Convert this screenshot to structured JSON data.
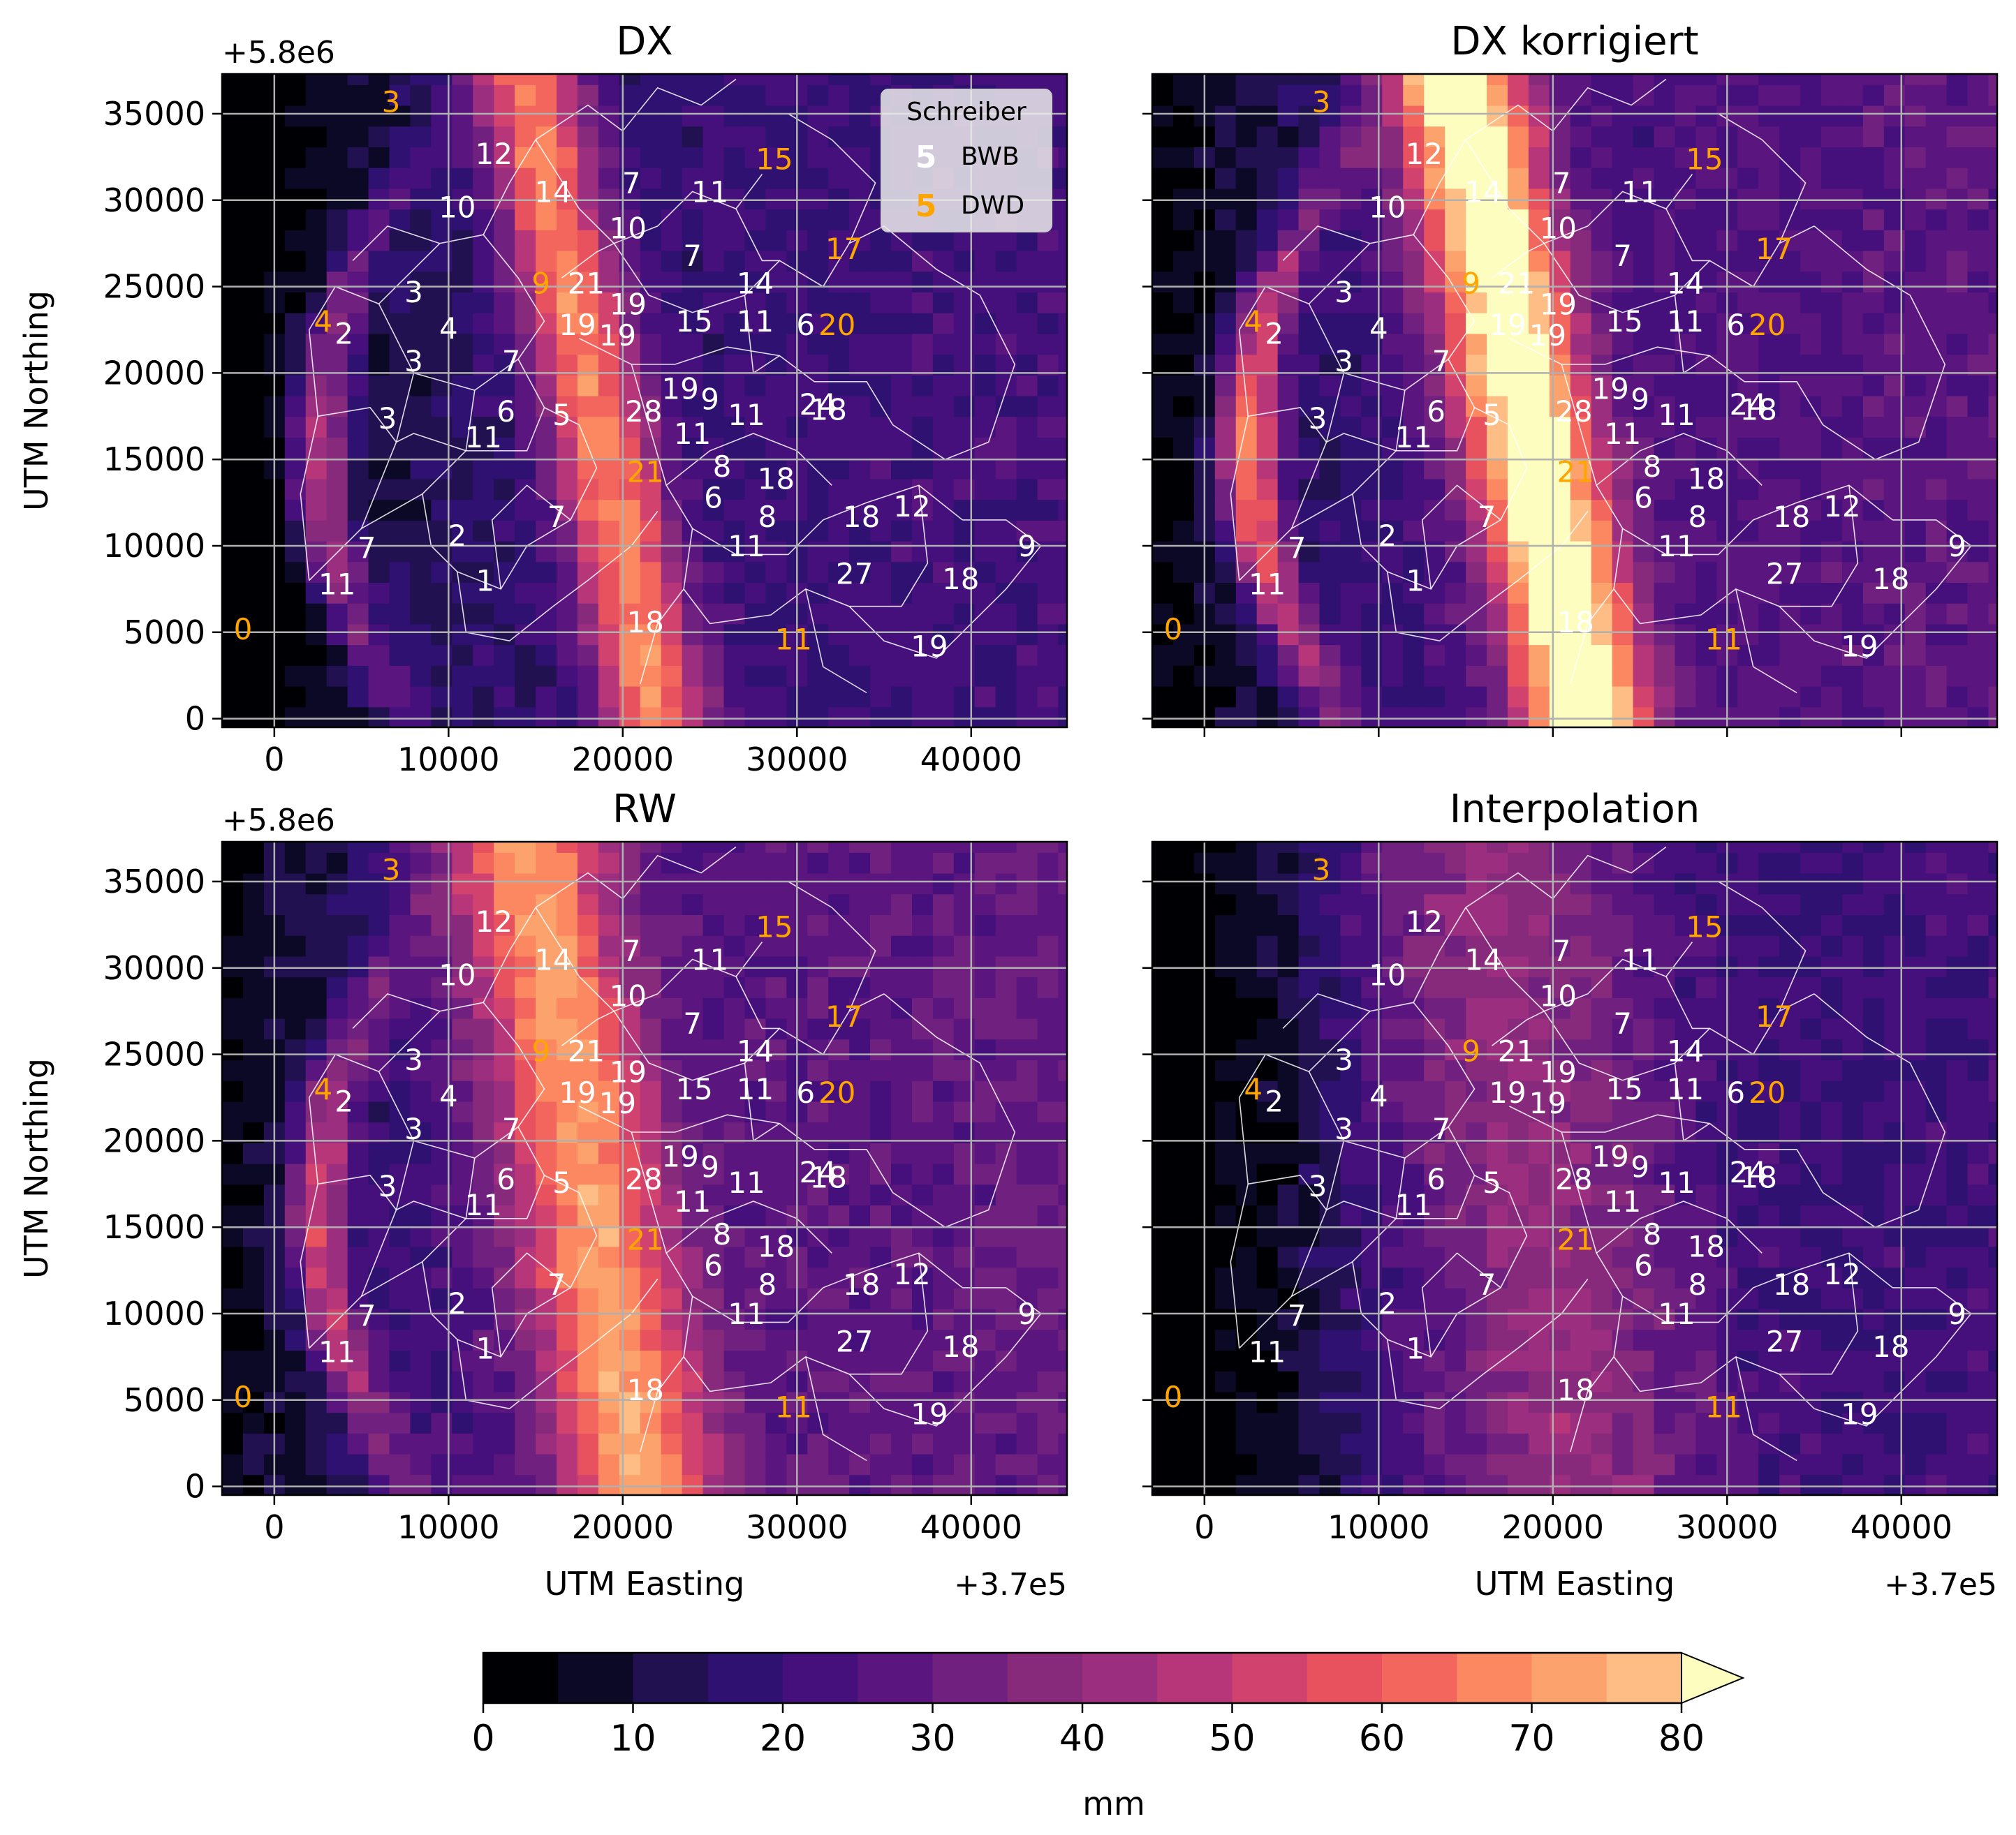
{
  "chart_data": [
    {
      "type": "heatmap",
      "title": "DX",
      "xlabel": "UTM Easting",
      "ylabel": "UTM Northing",
      "x_offset_label": "+3.7e5",
      "y_offset_label": "+5.8e6",
      "xlim": [
        -3000,
        45500
      ],
      "ylim": [
        -500,
        37300
      ],
      "xticks": [
        0,
        10000,
        20000,
        30000,
        40000
      ],
      "yticks": [
        0,
        5000,
        10000,
        15000,
        20000,
        25000,
        30000,
        35000
      ],
      "grid": true,
      "field": {
        "ridge_x0": 14500,
        "ridge_y0": 37000,
        "ridge_x1": 22000,
        "ridge_y1": 0,
        "ridge_peak": 50,
        "ridge_width": 2200,
        "west_arc_peak": 40,
        "background": 13
      }
    },
    {
      "type": "heatmap",
      "title": "DX korrigiert",
      "xlabel": "",
      "ylabel": "",
      "xlim": [
        -3000,
        45500
      ],
      "ylim": [
        -500,
        37300
      ],
      "grid": true,
      "field": {
        "ridge_x0": 14500,
        "ridge_y0": 37000,
        "ridge_x1": 22000,
        "ridge_y1": 0,
        "ridge_peak": 72,
        "ridge_width": 2700,
        "west_arc_peak": 55,
        "background": 18
      }
    },
    {
      "type": "heatmap",
      "title": "RW",
      "xlabel": "UTM Easting",
      "ylabel": "UTM Northing",
      "x_offset_label": "+3.7e5",
      "y_offset_label": "+5.8e6",
      "xlim": [
        -3000,
        45500
      ],
      "ylim": [
        -500,
        37300
      ],
      "xticks": [
        0,
        10000,
        20000,
        30000,
        40000
      ],
      "yticks": [
        0,
        5000,
        10000,
        15000,
        20000,
        25000,
        30000,
        35000
      ],
      "grid": true,
      "field": {
        "ridge_x0": 14500,
        "ridge_y0": 37000,
        "ridge_x1": 21000,
        "ridge_y1": 0,
        "ridge_peak": 48,
        "ridge_width": 3200,
        "west_arc_peak": 40,
        "background": 20
      }
    },
    {
      "type": "heatmap",
      "title": "Interpolation",
      "xlabel": "UTM Easting",
      "ylabel": "",
      "x_offset_label": "+3.7e5",
      "xlim": [
        -3000,
        45500
      ],
      "ylim": [
        -500,
        37300
      ],
      "xticks": [
        0,
        10000,
        20000,
        30000,
        40000
      ],
      "grid": true,
      "field": {
        "ridge_x0": 16000,
        "ridge_y0": 37000,
        "ridge_x1": 21000,
        "ridge_y1": 0,
        "ridge_peak": 24,
        "ridge_width": 6000,
        "west_arc_peak": 0,
        "background": 12
      }
    }
  ],
  "gauges": [
    {
      "v": "3",
      "x": 6700,
      "y": 35700,
      "net": "DWD"
    },
    {
      "v": "12",
      "x": 12600,
      "y": 32700,
      "net": "BWB"
    },
    {
      "v": "15",
      "x": 28700,
      "y": 32400,
      "net": "DWD"
    },
    {
      "v": "14",
      "x": 16000,
      "y": 30500,
      "net": "BWB"
    },
    {
      "v": "7",
      "x": 20500,
      "y": 31000,
      "net": "BWB"
    },
    {
      "v": "11",
      "x": 25000,
      "y": 30500,
      "net": "BWB"
    },
    {
      "v": "10",
      "x": 10500,
      "y": 29600,
      "net": "BWB"
    },
    {
      "v": "10",
      "x": 20300,
      "y": 28400,
      "net": "BWB"
    },
    {
      "v": "7",
      "x": 24000,
      "y": 26800,
      "net": "BWB"
    },
    {
      "v": "17",
      "x": 32700,
      "y": 27200,
      "net": "DWD"
    },
    {
      "v": "9",
      "x": 15300,
      "y": 25200,
      "net": "DWD"
    },
    {
      "v": "21",
      "x": 17900,
      "y": 25200,
      "net": "BWB"
    },
    {
      "v": "14",
      "x": 27600,
      "y": 25200,
      "net": "BWB"
    },
    {
      "v": "3",
      "x": 8000,
      "y": 24700,
      "net": "BWB"
    },
    {
      "v": "19",
      "x": 20300,
      "y": 24000,
      "net": "BWB"
    },
    {
      "v": "4",
      "x": 2800,
      "y": 23000,
      "net": "DWD"
    },
    {
      "v": "2",
      "x": 4000,
      "y": 22300,
      "net": "BWB"
    },
    {
      "v": "4",
      "x": 10000,
      "y": 22600,
      "net": "BWB"
    },
    {
      "v": "19",
      "x": 17400,
      "y": 22800,
      "net": "BWB"
    },
    {
      "v": "19",
      "x": 19700,
      "y": 22200,
      "net": "BWB"
    },
    {
      "v": "15",
      "x": 24100,
      "y": 23000,
      "net": "BWB"
    },
    {
      "v": "11",
      "x": 27600,
      "y": 23000,
      "net": "BWB"
    },
    {
      "v": "6",
      "x": 30500,
      "y": 22800,
      "net": "BWB"
    },
    {
      "v": "20",
      "x": 32300,
      "y": 22800,
      "net": "DWD"
    },
    {
      "v": "3",
      "x": 8000,
      "y": 20700,
      "net": "BWB"
    },
    {
      "v": "7",
      "x": 13600,
      "y": 20700,
      "net": "BWB"
    },
    {
      "v": "19",
      "x": 23300,
      "y": 19100,
      "net": "BWB"
    },
    {
      "v": "9",
      "x": 25000,
      "y": 18500,
      "net": "BWB"
    },
    {
      "v": "24",
      "x": 31200,
      "y": 18200,
      "net": "BWB"
    },
    {
      "v": "18",
      "x": 31800,
      "y": 17900,
      "net": "BWB"
    },
    {
      "v": "3",
      "x": 6500,
      "y": 17400,
      "net": "BWB"
    },
    {
      "v": "6",
      "x": 13300,
      "y": 17800,
      "net": "BWB"
    },
    {
      "v": "5",
      "x": 16500,
      "y": 17600,
      "net": "BWB"
    },
    {
      "v": "28",
      "x": 21200,
      "y": 17800,
      "net": "BWB"
    },
    {
      "v": "11",
      "x": 27100,
      "y": 17600,
      "net": "BWB"
    },
    {
      "v": "11",
      "x": 12000,
      "y": 16300,
      "net": "BWB"
    },
    {
      "v": "11",
      "x": 24000,
      "y": 16500,
      "net": "BWB"
    },
    {
      "v": "21",
      "x": 21300,
      "y": 14300,
      "net": "DWD"
    },
    {
      "v": "8",
      "x": 25700,
      "y": 14600,
      "net": "BWB"
    },
    {
      "v": "18",
      "x": 28800,
      "y": 13900,
      "net": "BWB"
    },
    {
      "v": "6",
      "x": 25200,
      "y": 12800,
      "net": "BWB"
    },
    {
      "v": "12",
      "x": 36600,
      "y": 12300,
      "net": "BWB"
    },
    {
      "v": "18",
      "x": 33700,
      "y": 11700,
      "net": "BWB"
    },
    {
      "v": "8",
      "x": 28300,
      "y": 11700,
      "net": "BWB"
    },
    {
      "v": "7",
      "x": 16200,
      "y": 11700,
      "net": "BWB"
    },
    {
      "v": "2",
      "x": 10500,
      "y": 10600,
      "net": "BWB"
    },
    {
      "v": "9",
      "x": 43200,
      "y": 10000,
      "net": "BWB"
    },
    {
      "v": "11",
      "x": 27100,
      "y": 10000,
      "net": "BWB"
    },
    {
      "v": "7",
      "x": 5300,
      "y": 9900,
      "net": "BWB"
    },
    {
      "v": "27",
      "x": 33300,
      "y": 8400,
      "net": "BWB"
    },
    {
      "v": "18",
      "x": 39400,
      "y": 8100,
      "net": "BWB"
    },
    {
      "v": "1",
      "x": 12100,
      "y": 8000,
      "net": "BWB"
    },
    {
      "v": "11",
      "x": 3600,
      "y": 7800,
      "net": "BWB"
    },
    {
      "v": "18",
      "x": 21300,
      "y": 5600,
      "net": "BWB"
    },
    {
      "v": "0",
      "x": -1800,
      "y": 5200,
      "net": "DWD"
    },
    {
      "v": "11",
      "x": 29800,
      "y": 4600,
      "net": "DWD"
    },
    {
      "v": "19",
      "x": 37600,
      "y": 4200,
      "net": "BWB"
    }
  ],
  "legend": {
    "title": "Schreiber",
    "entries": [
      {
        "sample": "5",
        "label": "BWB",
        "color": "#ffffff"
      },
      {
        "sample": "5",
        "label": "DWD",
        "color": "#ffa500"
      }
    ]
  },
  "colorbar": {
    "label": "mm",
    "ticks": [
      "0",
      "10",
      "20",
      "30",
      "40",
      "50",
      "60",
      "70",
      "80"
    ],
    "levels": [
      0,
      5,
      10,
      15,
      20,
      25,
      30,
      35,
      40,
      45,
      50,
      55,
      60,
      65,
      70,
      75,
      80
    ],
    "colors": [
      "#000004",
      "#0c0926",
      "#221150",
      "#2e1170",
      "#45107c",
      "#5a157f",
      "#70217f",
      "#872a7c",
      "#9c2e7f",
      "#b63679",
      "#d2426f",
      "#e8525f",
      "#f3665d",
      "#fb8861",
      "#fca26d",
      "#fdbd84",
      "#fcd89d",
      "#fcfdbf"
    ],
    "extend": "max"
  },
  "colors": {
    "bwb": "#ffffff",
    "dwd": "#ffa500",
    "grid": "#b0b0b0",
    "boundary": "#ffffff"
  }
}
